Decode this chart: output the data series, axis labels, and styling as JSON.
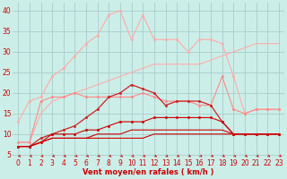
{
  "background_color": "#cceee8",
  "grid_color": "#aacccc",
  "xlabel": "Vent moyen/en rafales ( km/h )",
  "xlabel_color": "#cc0000",
  "xlabel_fontsize": 6,
  "tick_color": "#cc0000",
  "tick_fontsize": 5.5,
  "xlim": [
    -0.5,
    23.5
  ],
  "ylim": [
    5,
    42
  ],
  "yticks": [
    5,
    10,
    15,
    20,
    25,
    30,
    35,
    40
  ],
  "xticks": [
    0,
    1,
    2,
    3,
    4,
    5,
    6,
    7,
    8,
    9,
    10,
    11,
    12,
    13,
    14,
    15,
    16,
    17,
    18,
    19,
    20,
    21,
    22,
    23
  ],
  "series": [
    {
      "color": "#ffaaaa",
      "linewidth": 0.8,
      "marker": "o",
      "markersize": 1.8,
      "y": [
        13,
        18,
        19,
        24,
        26,
        29,
        32,
        34,
        39,
        40,
        33,
        39,
        33,
        33,
        33,
        30,
        33,
        33,
        32,
        24,
        15,
        16,
        16,
        16
      ]
    },
    {
      "color": "#ffaaaa",
      "linewidth": 0.8,
      "marker": null,
      "markersize": 0,
      "y": [
        8,
        8,
        15,
        18,
        19,
        20,
        21,
        22,
        23,
        24,
        25,
        26,
        27,
        27,
        27,
        27,
        27,
        28,
        29,
        30,
        31,
        32,
        32,
        32
      ]
    },
    {
      "color": "#ff8888",
      "linewidth": 0.8,
      "marker": "o",
      "markersize": 1.8,
      "y": [
        8,
        8,
        18,
        19,
        19,
        20,
        19,
        19,
        19,
        19,
        19,
        20,
        19,
        18,
        18,
        18,
        17,
        17,
        24,
        16,
        15,
        16,
        16,
        16
      ]
    },
    {
      "color": "#cc2222",
      "linewidth": 0.9,
      "marker": "o",
      "markersize": 1.8,
      "y": [
        7,
        7,
        9,
        10,
        11,
        12,
        14,
        16,
        19,
        20,
        22,
        21,
        20,
        17,
        18,
        18,
        18,
        17,
        13,
        10,
        10,
        10,
        10,
        10
      ]
    },
    {
      "color": "#cc0000",
      "linewidth": 0.8,
      "marker": "o",
      "markersize": 1.8,
      "y": [
        7,
        7,
        8,
        10,
        10,
        10,
        11,
        11,
        12,
        13,
        13,
        13,
        14,
        14,
        14,
        14,
        14,
        14,
        13,
        10,
        10,
        10,
        10,
        10
      ]
    },
    {
      "color": "#cc0000",
      "linewidth": 0.8,
      "marker": null,
      "markersize": 0,
      "y": [
        7,
        7,
        8,
        9,
        9,
        9,
        9,
        10,
        10,
        10,
        11,
        11,
        11,
        11,
        11,
        11,
        11,
        11,
        11,
        10,
        10,
        10,
        10,
        10
      ]
    },
    {
      "color": "#cc0000",
      "linewidth": 0.8,
      "marker": null,
      "markersize": 0,
      "y": [
        7,
        7,
        8,
        9,
        9,
        9,
        9,
        9,
        9,
        9,
        9,
        9,
        10,
        10,
        10,
        10,
        10,
        10,
        10,
        10,
        10,
        10,
        10,
        10
      ]
    }
  ]
}
